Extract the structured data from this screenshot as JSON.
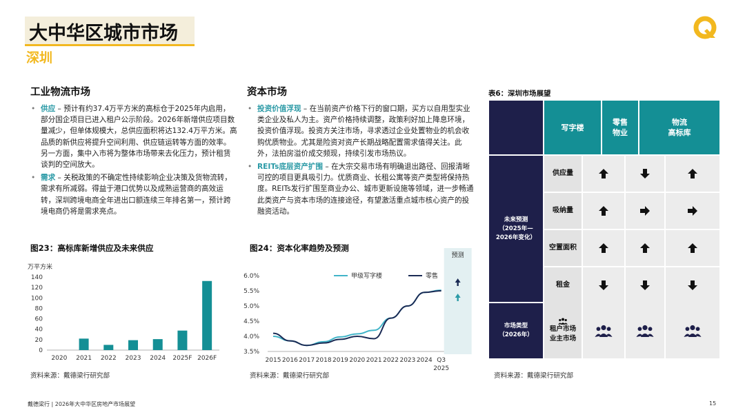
{
  "header": {
    "title": "大中华区城市市场",
    "subtitle": "深圳"
  },
  "colors": {
    "accent_gold": "#f2b81f",
    "teal": "#148f95",
    "navy": "#1e1f4a",
    "highlight_teal": "#2b9aa6"
  },
  "industrial": {
    "heading": "工业物流市场",
    "bullets": [
      {
        "label": "供应",
        "text": " – 预计有约37.4万平方米的高标仓于2025年内启用，部分国企项目已进入租户公示阶段。2026年新增供应项目数量减少，但单体规模大，总供应面积将达132.4万平方米。高品质的新供应将提升空间利用、供应链运转等方面的效率。另一方面，集中入市将为整体市场带来去化压力，预计租赁谈判的空间放大。"
      },
      {
        "label": "需求",
        "text": " – 关税政策的不确定性持续影响企业决策及货物流转，需求有所减弱。得益于港口优势以及成熟运营商的高效运转，深圳跨境电商全年进出口额连续三年排名第一，预计跨境电商仍将是需求亮点。"
      }
    ]
  },
  "capital": {
    "heading": "资本市场",
    "bullets": [
      {
        "label": "投资价值浮现",
        "text": " – 在当前资产价格下行的窗口期，买方以自用型实业类企业及私人为主。资产价格持续调整，政策利好加上降息环境，投资价值浮现。投资方关注市场，寻求透过企业处置物业的机会收购优质物业。尤其是险资对资产长期战略配置需求值得关注。此外，法拍房溢价成交频现，持续引发市场热议。"
      },
      {
        "label": "REITs底层资产扩围",
        "text": " – 在大宗交易市场有明确退出路径、回报清晰可控的项目更具吸引力。优质商业、长租公寓等资产类型将保持热度。REITs发行扩围至商业办公、城市更新设施等领域，进一步畅通此类资产与资本市场的连接途径，有望激活重点城市核心资产的投融资活动。"
      }
    ]
  },
  "figure23": {
    "title": "图23：高标库新增供应及未来供应",
    "source": "资料来源：戴德梁行研究部"
  },
  "figure24": {
    "title": "图24：资本化率趋势及预测",
    "source": "资料来源：戴德梁行研究部",
    "forecast_label": "预测"
  },
  "chart_data": [
    {
      "type": "bar",
      "unit_label": "万平方米",
      "categories": [
        "2020",
        "2021",
        "2022",
        "2023",
        "2024",
        "2025F",
        "2026F"
      ],
      "values": [
        0,
        22,
        10,
        19,
        21,
        37.4,
        132.4
      ],
      "ylim": [
        0,
        140
      ],
      "yticks": [
        0,
        20,
        40,
        60,
        80,
        100,
        120,
        140
      ],
      "color": "#148f95",
      "grid": false
    },
    {
      "type": "line",
      "x": [
        "2015",
        "2016",
        "2017",
        "2018",
        "2019",
        "2020",
        "2021",
        "2022",
        "2023",
        "2024",
        "Q3 2025"
      ],
      "series": [
        {
          "name": "甲级写字楼",
          "color": "#40b4c8",
          "values": [
            4.0,
            3.85,
            3.7,
            3.82,
            3.98,
            4.08,
            4.2,
            4.6,
            5.0,
            5.45,
            5.52
          ]
        },
        {
          "name": "零售",
          "color": "#1a2a54",
          "values": [
            4.1,
            3.85,
            3.7,
            3.78,
            3.9,
            4.0,
            3.92,
            4.6,
            5.0,
            5.45,
            5.5
          ]
        }
      ],
      "ylim": [
        3.5,
        6.0
      ],
      "yticks": [
        "3.5%",
        "4.0%",
        "4.5%",
        "5.0%",
        "5.5%",
        "6.0%"
      ],
      "forecast_arrows": [
        "up",
        "up"
      ],
      "legend": "top"
    }
  ],
  "table": {
    "title": "表6：深圳市场展望",
    "columns": [
      "写字楼",
      "零售\n物业",
      "物流\n高标库"
    ],
    "group_label_forecast": "未来预测\n（2025年—\n2026年变化）",
    "rows": [
      {
        "label": "供应量",
        "values": [
          "↑",
          "↓",
          "↑"
        ]
      },
      {
        "label": "吸纳量",
        "values": [
          "↑",
          "→",
          "→"
        ]
      },
      {
        "label": "空置面积",
        "values": [
          "↑",
          "↑",
          "↑"
        ]
      },
      {
        "label": "租金",
        "values": [
          "↓",
          "↓",
          "↓"
        ]
      }
    ],
    "group_label_type": "市场类型\n（2026年）",
    "market_type_label": "租户市场\n业主市场",
    "market_type_icons": [
      "people-icon",
      "people-icon",
      "people-icon"
    ],
    "source": "资料来源：戴德梁行研究部"
  },
  "footer": {
    "text": "戴德梁行 | 2026年大中华区房地产市场展望",
    "page": "15"
  }
}
